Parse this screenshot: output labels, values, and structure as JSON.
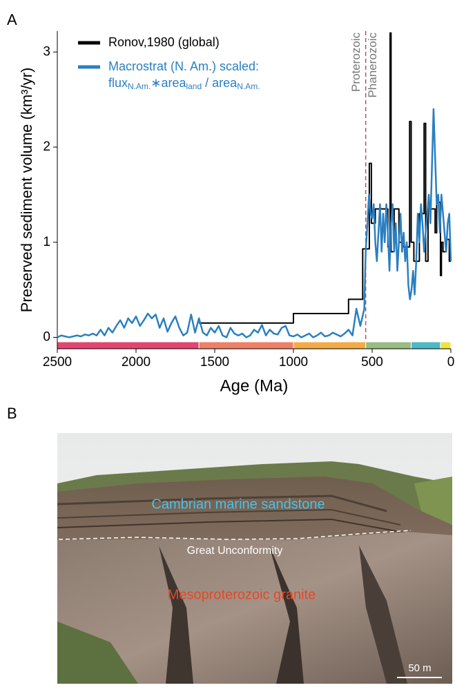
{
  "panel_labels": [
    "A",
    "B"
  ],
  "chart_data": {
    "type": "line",
    "y_label": "Preserved sediment volume (km³/yr)",
    "x_label": "Age (Ma)",
    "xlim": [
      2500,
      0
    ],
    "xticks": [
      2500,
      2000,
      1500,
      1000,
      500,
      0
    ],
    "ylim": [
      -0.12,
      3.22
    ],
    "yticks": [
      0,
      1,
      2,
      3
    ],
    "boundary": {
      "x": 541,
      "color": "#c24a5c",
      "labels": [
        "Proterozoic",
        "Phanerozoic"
      ]
    },
    "timescale": {
      "edges": [
        2500,
        1600,
        1000,
        541,
        252,
        66,
        0
      ],
      "colors": [
        "#e2456f",
        "#ef7f66",
        "#f4ab45",
        "#97bd82",
        "#4cb9c9",
        "#f2e23c"
      ]
    },
    "series": [
      {
        "name": "Ronov,1980 (global)",
        "color": "#000000",
        "x": [
          1600,
          1000,
          1000,
          650,
          650,
          560,
          560,
          518,
          518,
          505,
          505,
          480,
          480,
          400,
          400,
          386,
          386,
          380,
          380,
          360,
          360,
          330,
          330,
          300,
          300,
          262,
          262,
          252,
          252,
          235,
          235,
          200,
          200,
          170,
          170,
          160,
          160,
          145,
          145,
          100,
          100,
          90,
          90,
          66,
          66,
          60,
          60,
          50,
          50,
          30,
          30,
          10,
          10,
          0
        ],
        "values": [
          0.15,
          0.15,
          0.25,
          0.25,
          0.4,
          0.4,
          0.93,
          0.93,
          1.83,
          1.83,
          1.2,
          1.2,
          1.35,
          1.35,
          0.95,
          0.95,
          3.2,
          3.2,
          0.9,
          0.9,
          1.35,
          1.35,
          1.0,
          1.0,
          0.95,
          0.95,
          2.27,
          2.27,
          1.0,
          1.0,
          0.8,
          0.8,
          1.3,
          1.3,
          2.25,
          2.25,
          0.8,
          0.8,
          1.35,
          1.35,
          1.1,
          1.1,
          1.42,
          1.42,
          0.65,
          0.65,
          1.0,
          1.0,
          0.9,
          0.9,
          1.03,
          1.03,
          0.8,
          0.8
        ]
      },
      {
        "name": "Macrostrat (N. Am.) scaled:",
        "color": "#2a7fc1",
        "note": [
          {
            "text": "flux"
          },
          {
            "sub": "N.Am."
          },
          {
            "text": "∗area"
          },
          {
            "sub": "land"
          },
          {
            "text": " / area"
          },
          {
            "sub": "N.Am."
          }
        ],
        "x": [
          2500,
          2475,
          2450,
          2425,
          2400,
          2375,
          2350,
          2325,
          2300,
          2275,
          2250,
          2225,
          2200,
          2175,
          2150,
          2125,
          2100,
          2075,
          2050,
          2025,
          2000,
          1975,
          1950,
          1925,
          1900,
          1875,
          1850,
          1825,
          1800,
          1775,
          1750,
          1725,
          1700,
          1675,
          1650,
          1625,
          1600,
          1575,
          1550,
          1525,
          1500,
          1475,
          1450,
          1425,
          1400,
          1375,
          1350,
          1325,
          1300,
          1275,
          1250,
          1225,
          1200,
          1175,
          1150,
          1125,
          1100,
          1075,
          1050,
          1025,
          1000,
          975,
          950,
          925,
          900,
          875,
          850,
          825,
          800,
          775,
          750,
          725,
          700,
          675,
          650,
          625,
          600,
          575,
          550,
          541,
          530,
          520,
          510,
          500,
          490,
          480,
          470,
          460,
          450,
          440,
          430,
          420,
          410,
          400,
          390,
          380,
          370,
          360,
          350,
          340,
          330,
          320,
          310,
          300,
          290,
          280,
          270,
          260,
          250,
          240,
          230,
          220,
          210,
          200,
          190,
          180,
          170,
          160,
          150,
          140,
          130,
          120,
          110,
          100,
          90,
          80,
          70,
          60,
          50,
          40,
          30,
          20,
          10,
          0
        ],
        "values": [
          0.0,
          0.02,
          0.01,
          0.0,
          0.01,
          0.02,
          0.01,
          0.03,
          0.02,
          0.04,
          0.02,
          0.08,
          0.02,
          0.1,
          0.05,
          0.12,
          0.18,
          0.1,
          0.2,
          0.15,
          0.22,
          0.12,
          0.18,
          0.25,
          0.2,
          0.24,
          0.1,
          0.2,
          0.06,
          0.15,
          0.22,
          0.1,
          0.02,
          0.05,
          0.24,
          0.05,
          0.2,
          0.05,
          0.02,
          0.1,
          0.05,
          0.12,
          0.02,
          0.0,
          0.1,
          0.04,
          0.02,
          0.04,
          0.0,
          0.02,
          0.08,
          0.05,
          0.13,
          0.02,
          0.08,
          0.04,
          0.03,
          0.1,
          0.12,
          0.02,
          0.01,
          0.03,
          0.0,
          0.02,
          0.04,
          0.0,
          0.02,
          0.05,
          0.01,
          0.02,
          0.05,
          0.03,
          0.01,
          0.04,
          0.08,
          0.02,
          0.3,
          0.12,
          0.3,
          0.9,
          1.2,
          1.5,
          1.3,
          1.25,
          1.4,
          1.0,
          0.8,
          1.1,
          1.4,
          0.9,
          1.3,
          1.0,
          1.4,
          1.1,
          0.7,
          1.2,
          1.4,
          0.9,
          1.2,
          0.7,
          1.0,
          1.3,
          0.9,
          1.1,
          0.8,
          1.0,
          0.55,
          0.4,
          0.5,
          0.7,
          0.45,
          0.8,
          1.3,
          1.0,
          1.4,
          1.2,
          0.9,
          1.1,
          1.3,
          1.5,
          1.2,
          1.8,
          2.4,
          1.9,
          1.4,
          1.5,
          1.1,
          1.5,
          1.3,
          1.1,
          0.9,
          1.2,
          1.3,
          0.8
        ]
      }
    ]
  },
  "photo": {
    "sandstone_label": "Cambrian marine sandstone",
    "unconformity_label": "Great Unconformity",
    "granite_label": "Mesoproterozoic granite",
    "scale_label": "50 m"
  }
}
